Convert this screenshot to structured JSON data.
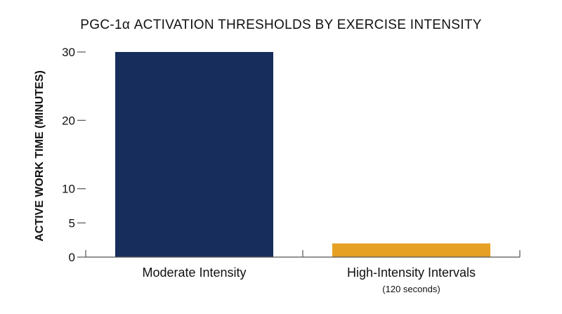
{
  "chart_data": {
    "type": "bar",
    "title": "PGC-1α ACTIVATION THRESHOLDS BY EXERCISE INTENSITY",
    "xlabel": "",
    "ylabel": "ACTIVE WORK TIME (MINUTES)",
    "categories": [
      "Moderate Intensity",
      "High-Intensity Intervals"
    ],
    "category_sublabels": [
      "",
      "(120 seconds)"
    ],
    "values": [
      30,
      2
    ],
    "colors": [
      "#172d5c",
      "#e6a023"
    ],
    "ylim": [
      0,
      30
    ],
    "yticks": [
      0,
      5,
      10,
      20,
      30
    ],
    "grid": false,
    "legend": "none"
  }
}
